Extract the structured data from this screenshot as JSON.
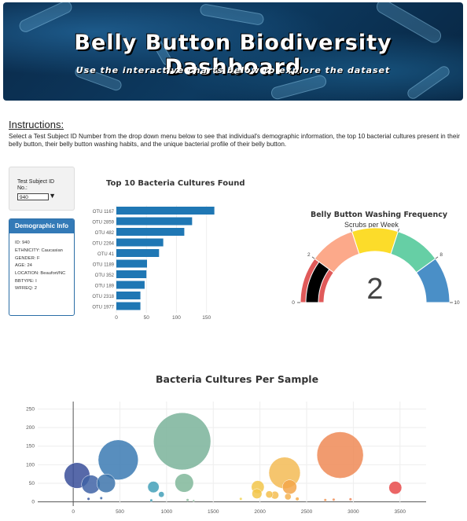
{
  "header": {
    "title": "Belly Button Biodiversity Dashboard",
    "subtitle": "Use the interactive charts below to explore the dataset"
  },
  "instructions": {
    "heading": "Instructions:",
    "text": "Select a Test Subject ID Number from the drop down menu below to see that individual's demographic information, the top 10 bacterial cultures present in their belly button, their belly button washing habits, and the unique bacterial profile of their belly button."
  },
  "selector": {
    "label": "Test Subject ID No.:",
    "value": "940"
  },
  "demographics": {
    "title": "Demographic Info",
    "rows": [
      "ID: 940",
      "ETHNICITY: Caucasian",
      "GENDER: F",
      "AGE: 24",
      "LOCATION: Beaufort/NC",
      "BBTYPE: I",
      "WFREQ: 2"
    ]
  },
  "colors": {
    "bar": "#1f77b4",
    "panel_header": "#337ab7"
  },
  "chart_data": [
    {
      "type": "bar",
      "orientation": "horizontal",
      "title": "Top 10 Bacteria Cultures Found",
      "categories": [
        "OTU 1167",
        "OTU 2859",
        "OTU 482",
        "OTU 2264",
        "OTU 41",
        "OTU 1189",
        "OTU 352",
        "OTU 189",
        "OTU 2318",
        "OTU 1977"
      ],
      "values": [
        163,
        126,
        113,
        78,
        71,
        51,
        50,
        47,
        40,
        40
      ],
      "xticks": [
        0,
        50,
        100,
        150
      ],
      "xlim": [
        0,
        170
      ]
    },
    {
      "type": "gauge",
      "title": "Belly Button Washing Frequency",
      "subtitle": "Scrubs per Week",
      "value": 2,
      "range": [
        0,
        10
      ],
      "ticks": [
        0,
        2,
        4,
        6,
        8,
        10
      ],
      "bands": [
        {
          "from": 0,
          "to": 2,
          "color": "#e05a5a"
        },
        {
          "from": 2,
          "to": 4,
          "color": "#fca98a"
        },
        {
          "from": 4,
          "to": 6,
          "color": "#fcdc2a"
        },
        {
          "from": 6,
          "to": 8,
          "color": "#66cfa5"
        },
        {
          "from": 8,
          "to": 10,
          "color": "#4a8fc7"
        }
      ],
      "bar_color": "#000000"
    },
    {
      "type": "scatter",
      "title": "Bacteria Cultures Per Sample",
      "xticks": [
        0,
        500,
        1000,
        1500,
        2000,
        2500,
        3000,
        3500
      ],
      "yticks": [
        0,
        50,
        100,
        150,
        200,
        250
      ],
      "xlim": [
        -380,
        3780
      ],
      "ylim": [
        -5,
        270
      ],
      "points": [
        {
          "x": 41,
          "y": 71,
          "r": 36,
          "color": "#3a4f9a"
        },
        {
          "x": 189,
          "y": 47,
          "r": 26,
          "color": "#3f63a6"
        },
        {
          "x": 352,
          "y": 50,
          "r": 26,
          "color": "#3d74ac"
        },
        {
          "x": 482,
          "y": 113,
          "r": 56,
          "color": "#3b7ab3"
        },
        {
          "x": 164,
          "y": 8,
          "r": 4,
          "color": "#3a58a0"
        },
        {
          "x": 300,
          "y": 10,
          "r": 4,
          "color": "#3e6aa8"
        },
        {
          "x": 859,
          "y": 40,
          "r": 16,
          "color": "#43a0b8"
        },
        {
          "x": 944,
          "y": 20,
          "r": 8,
          "color": "#43a0b8"
        },
        {
          "x": 836,
          "y": 4,
          "r": 4,
          "color": "#43a0b8"
        },
        {
          "x": 1167,
          "y": 163,
          "r": 80,
          "color": "#7ab39a"
        },
        {
          "x": 1189,
          "y": 51,
          "r": 26,
          "color": "#80b79a"
        },
        {
          "x": 1225,
          "y": 5,
          "r": 4,
          "color": "#90bda0"
        },
        {
          "x": 1290,
          "y": 3,
          "r": 3,
          "color": "#95c0a3"
        },
        {
          "x": 1795,
          "y": 8,
          "r": 4,
          "color": "#f2d65a"
        },
        {
          "x": 1977,
          "y": 40,
          "r": 18,
          "color": "#f2c64a"
        },
        {
          "x": 1968,
          "y": 22,
          "r": 14,
          "color": "#f2c64a"
        },
        {
          "x": 2100,
          "y": 20,
          "r": 10,
          "color": "#f3c04f"
        },
        {
          "x": 2160,
          "y": 18,
          "r": 11,
          "color": "#f4bd52"
        },
        {
          "x": 2264,
          "y": 78,
          "r": 44,
          "color": "#f3bb55"
        },
        {
          "x": 2318,
          "y": 40,
          "r": 20,
          "color": "#f3a64a"
        },
        {
          "x": 2300,
          "y": 14,
          "r": 9,
          "color": "#f4b250"
        },
        {
          "x": 2400,
          "y": 8,
          "r": 5,
          "color": "#f5ad4d"
        },
        {
          "x": 2700,
          "y": 5,
          "r": 4,
          "color": "#f29a5a"
        },
        {
          "x": 2790,
          "y": 6,
          "r": 4,
          "color": "#f1905a"
        },
        {
          "x": 2859,
          "y": 126,
          "r": 65,
          "color": "#ef8a56"
        },
        {
          "x": 2970,
          "y": 7,
          "r": 4,
          "color": "#ee875a"
        },
        {
          "x": 3450,
          "y": 38,
          "r": 18,
          "color": "#e84a4a"
        }
      ]
    }
  ]
}
